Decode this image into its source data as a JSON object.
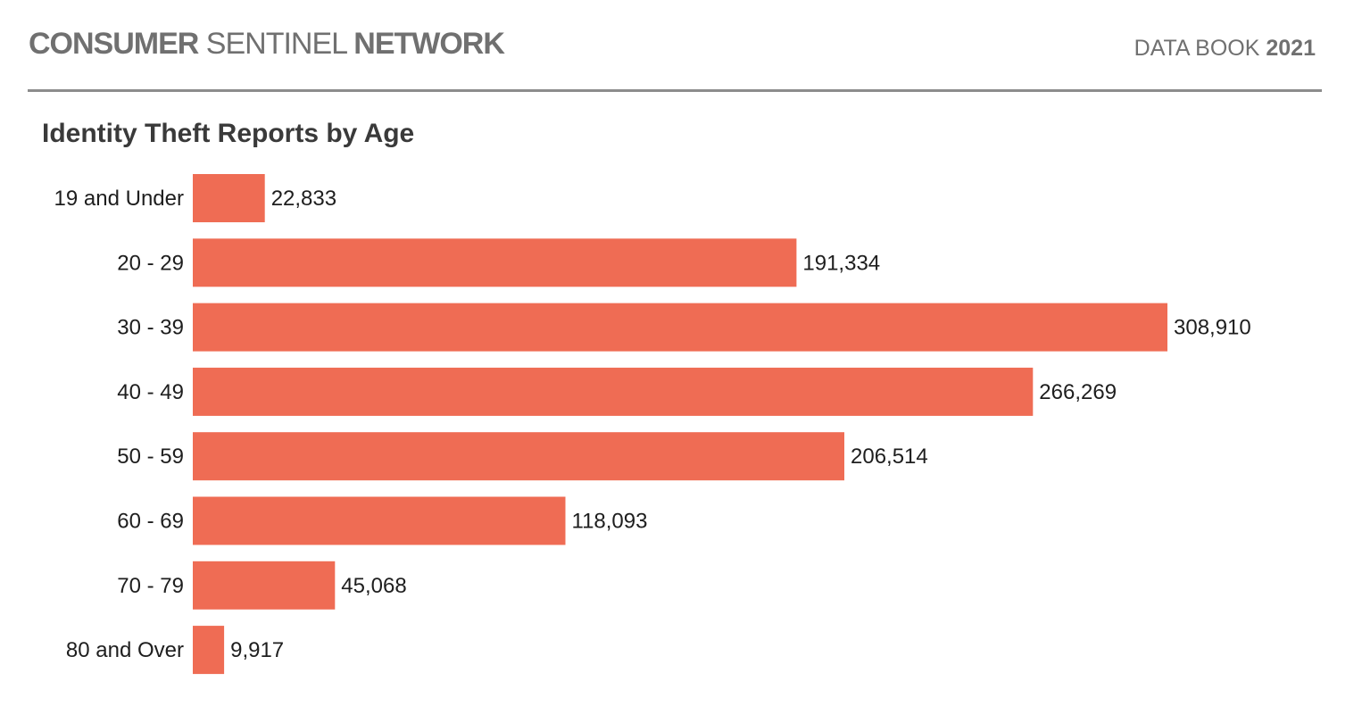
{
  "header": {
    "brand_bold_1": "CONSUMER",
    "brand_light": "SENTINEL",
    "brand_bold_2": "NETWORK",
    "book_label": "DATA BOOK",
    "book_year": "2021"
  },
  "colors": {
    "bar": "#ef6c54",
    "header_text": "#707070",
    "rule": "#8c8c8c"
  },
  "chart_data": {
    "type": "bar",
    "orientation": "horizontal",
    "title": "Identity Theft Reports by Age",
    "categories": [
      "19 and Under",
      "20 - 29",
      "30 - 39",
      "40 - 49",
      "50 - 59",
      "60 - 69",
      "70 - 79",
      "80 and Over"
    ],
    "values": [
      22833,
      191334,
      308910,
      266269,
      206514,
      118093,
      45068,
      9917
    ],
    "value_labels": [
      "22,833",
      "191,334",
      "308,910",
      "266,269",
      "206,514",
      "118,093",
      "45,068",
      "9,917"
    ],
    "xlim": [
      0,
      308910
    ],
    "grid": false,
    "legend": "none"
  }
}
